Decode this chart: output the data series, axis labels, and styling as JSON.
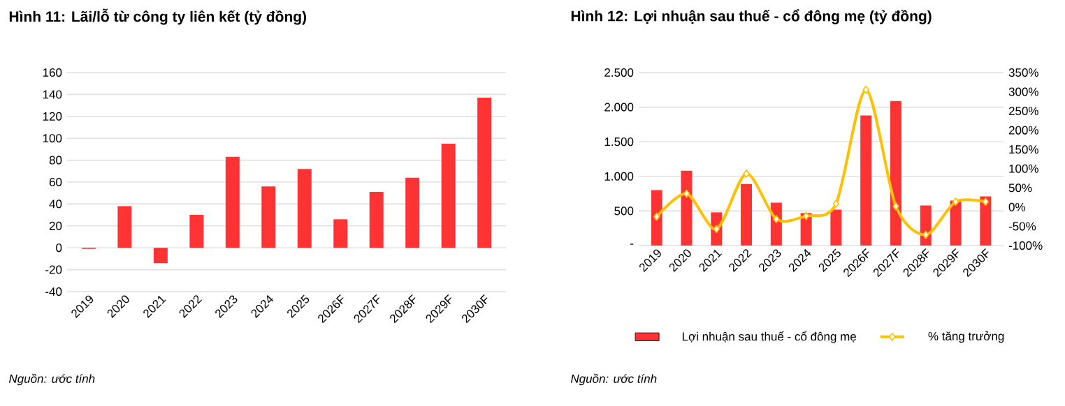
{
  "chart_data": [
    {
      "type": "bar",
      "title": "Hình 11: Lãi/lỗ từ công ty liên kết (tỷ đồng)",
      "categories": [
        "2019",
        "2020",
        "2021",
        "2022",
        "2023",
        "2024",
        "2025",
        "2026F",
        "2027F",
        "2028F",
        "2029F",
        "2030F"
      ],
      "values": [
        -1,
        38,
        -14,
        30,
        83,
        56,
        72,
        26,
        51,
        64,
        95,
        137
      ],
      "color": "#ff3333",
      "ylim": [
        -40,
        160
      ],
      "yticks": [
        -40,
        -20,
        0,
        20,
        40,
        60,
        80,
        100,
        120,
        140,
        160
      ],
      "grid": "y",
      "annotations": [
        "Nguồn: ước tính"
      ]
    },
    {
      "type": "bar",
      "title": "Hình 12: Lợi nhuận sau thuế - cổ đông mẹ (tỷ đồng)",
      "categories": [
        "2019",
        "2020",
        "2021",
        "2022",
        "2023",
        "2024",
        "2025",
        "2026F",
        "2027F",
        "2028F",
        "2029F",
        "2030F"
      ],
      "series": [
        {
          "name": "Lợi nhuận sau thuế - cổ đông mẹ",
          "type": "bar",
          "color": "#ff3333",
          "values": [
            800,
            1080,
            480,
            890,
            620,
            470,
            520,
            1880,
            2090,
            580,
            650,
            710
          ]
        },
        {
          "name": "% tăng trưởng",
          "type": "line",
          "axis": "y2",
          "color": "#ffc000",
          "values": [
            -25,
            35,
            -57,
            87,
            -31,
            -23,
            9,
            305,
            2,
            -72,
            14,
            14
          ]
        }
      ],
      "ylim": [
        0,
        2500
      ],
      "yticks": [
        {
          "value": 0,
          "label": "-"
        },
        500,
        {
          "value": 1000,
          "label": "1.000"
        },
        {
          "value": 1500,
          "label": "1.500"
        },
        {
          "value": 2000,
          "label": "2.000"
        },
        {
          "value": 2500,
          "label": "2.500"
        }
      ],
      "y2lim": [
        -100,
        350
      ],
      "y2ticks": [
        {
          "value": -100,
          "label": "-100%"
        },
        {
          "value": -50,
          "label": "-50%"
        },
        {
          "value": 0,
          "label": "0%"
        },
        {
          "value": 50,
          "label": "50%"
        },
        {
          "value": 100,
          "label": "100%"
        },
        {
          "value": 150,
          "label": "150%"
        },
        {
          "value": 200,
          "label": "200%"
        },
        {
          "value": 250,
          "label": "250%"
        },
        {
          "value": 300,
          "label": "300%"
        },
        {
          "value": 350,
          "label": "350%"
        }
      ],
      "grid": "y",
      "legend": "bottom",
      "marker": "diamond",
      "line_style": "solid",
      "annotations": [
        "Nguồn: ước tính"
      ]
    }
  ]
}
